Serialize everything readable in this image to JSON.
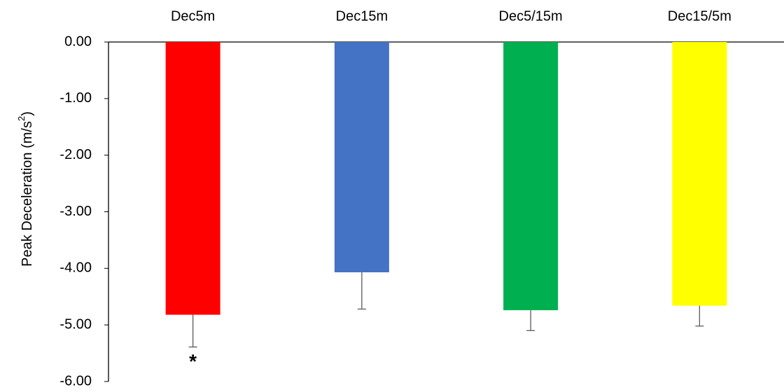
{
  "chart_data": {
    "type": "bar",
    "categories": [
      "Dec5m",
      "Dec15m",
      "Dec5/15m",
      "Dec15/5m"
    ],
    "values": [
      -4.82,
      -4.07,
      -4.74,
      -4.66
    ],
    "error_bars": [
      0.57,
      0.65,
      0.36,
      0.36
    ],
    "colors": [
      "#FF0000",
      "#4472C4",
      "#00B050",
      "#FFFF00"
    ],
    "ylabel_main": "Peak Deceleration (m/s",
    "ylabel_sup": "2",
    "ylabel_tail": ")",
    "ylim": [
      -6,
      0
    ],
    "yticks": [
      0,
      -1,
      -2,
      -3,
      -4,
      -5,
      -6
    ],
    "ytick_labels": [
      "0.00",
      "-1.00",
      "-2.00",
      "-3.00",
      "-4.00",
      "-5.00",
      "-6.00"
    ],
    "category_label_position": "top",
    "significance": {
      "category_index": 0,
      "marker": "*"
    },
    "grid": false,
    "legend": "none"
  }
}
